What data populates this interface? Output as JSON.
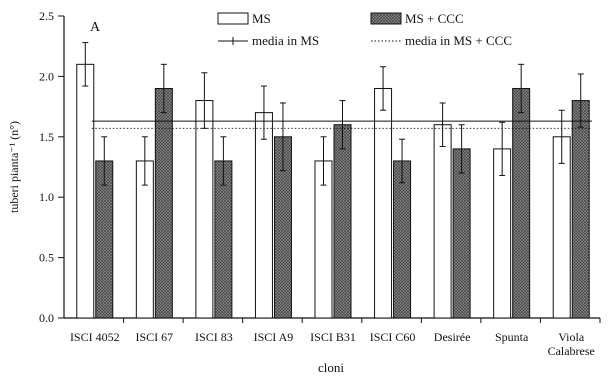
{
  "chart_data": {
    "type": "bar",
    "panel_label": "A",
    "categories": [
      "ISCI 4052",
      "ISCI 67",
      "ISCI 83",
      "ISCI A9",
      "ISCI B31",
      "ISCI C60",
      "Desirée",
      "Spunta",
      "Viola\nCalabrese"
    ],
    "series": [
      {
        "name": "MS",
        "values": [
          2.1,
          1.3,
          1.8,
          1.7,
          1.3,
          1.9,
          1.6,
          1.4,
          1.5
        ],
        "errors": [
          0.18,
          0.2,
          0.23,
          0.22,
          0.2,
          0.18,
          0.18,
          0.22,
          0.22
        ],
        "fill": "#ffffff"
      },
      {
        "name": "MS + CCC",
        "values": [
          1.3,
          1.9,
          1.3,
          1.5,
          1.6,
          1.3,
          1.4,
          1.9,
          1.8
        ],
        "errors": [
          0.2,
          0.2,
          0.2,
          0.28,
          0.2,
          0.18,
          0.2,
          0.2,
          0.22
        ],
        "fill": "#8a8a8a"
      }
    ],
    "reference_lines": [
      {
        "name": "media in MS",
        "value": 1.63,
        "style": "solid"
      },
      {
        "name": "media in MS + CCC",
        "value": 1.57,
        "style": "dotted"
      }
    ],
    "xlabel": "cloni",
    "ylabel": "tuberi pianta⁻¹ (n°)",
    "ylim": [
      0,
      2.5
    ],
    "yticks": [
      "0.0",
      "0.5",
      "1.0",
      "1.5",
      "2.0",
      "2.5"
    ],
    "legend_position": "top",
    "grid": false
  }
}
